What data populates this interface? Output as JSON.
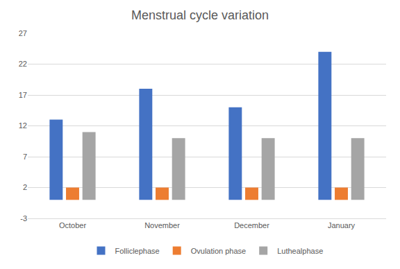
{
  "chart_data": {
    "type": "bar",
    "title": "Menstrual cycle variation",
    "categories": [
      "October",
      "November",
      "December",
      "January"
    ],
    "series": [
      {
        "name": "Folliclephase",
        "color": "#4472c4",
        "values": [
          13,
          18,
          15,
          24
        ]
      },
      {
        "name": "Ovulation phase",
        "color": "#ed7d31",
        "values": [
          2,
          2,
          2,
          2
        ]
      },
      {
        "name": "Luthealphase",
        "color": "#a5a5a5",
        "values": [
          11,
          10,
          10,
          10
        ]
      }
    ],
    "ylim": [
      -3,
      27
    ],
    "yticks": [
      -3,
      2,
      7,
      12,
      17,
      22,
      27
    ],
    "grid": true,
    "legend": "bottom"
  }
}
